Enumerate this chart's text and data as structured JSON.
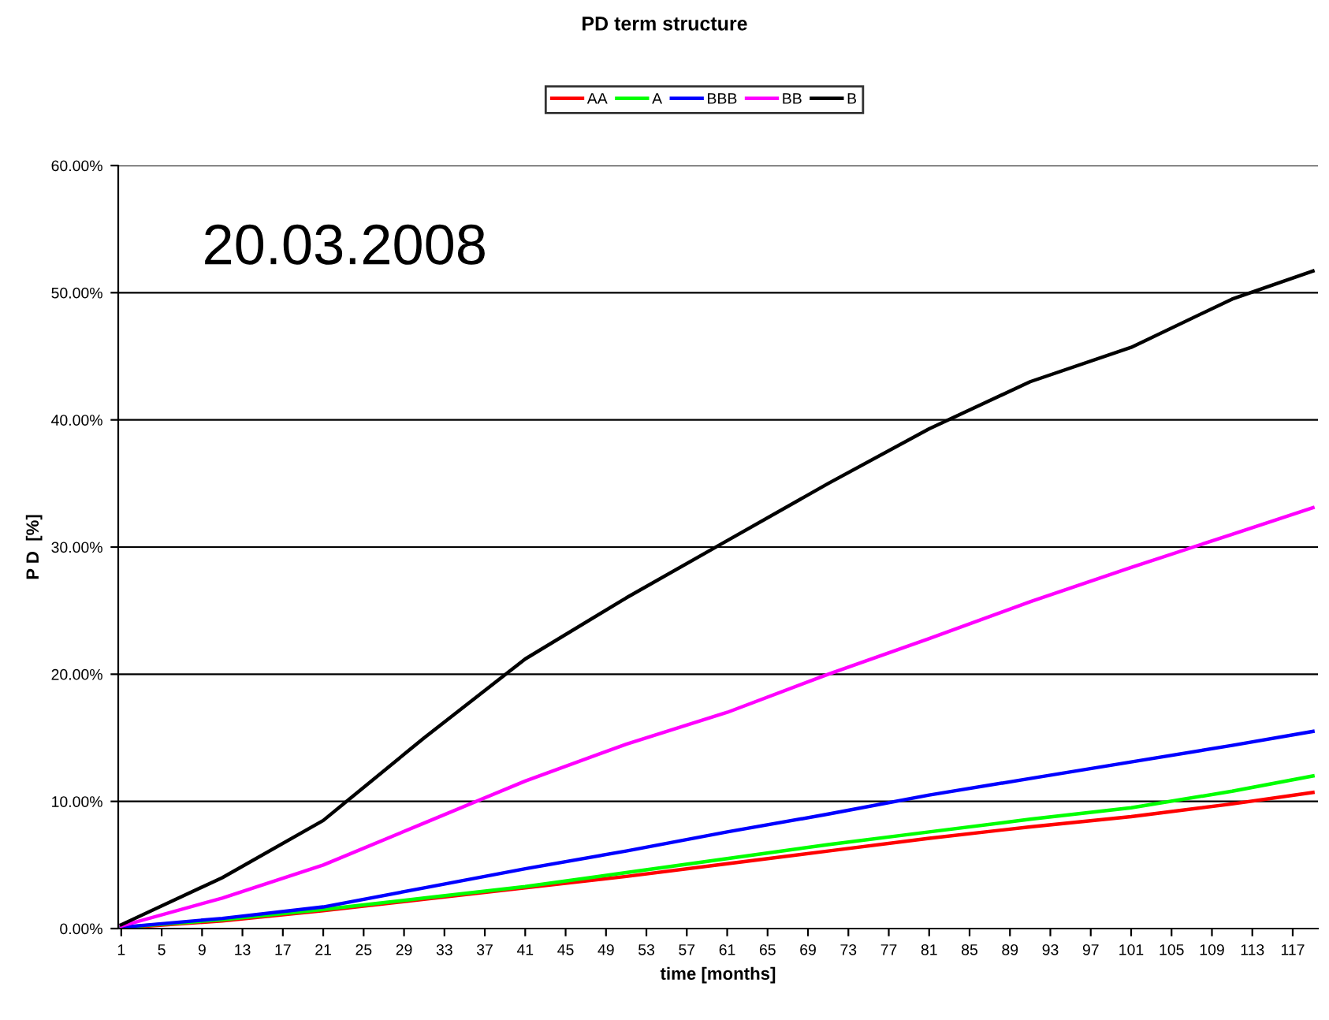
{
  "chart_data": {
    "type": "line",
    "title": "PD term structure",
    "xlabel": "time [months]",
    "ylabel": "P D  [%]",
    "x": [
      1,
      11,
      21,
      31,
      41,
      51,
      61,
      71,
      81,
      91,
      101,
      111,
      119
    ],
    "series": [
      {
        "name": "AA",
        "color": "#ff0000",
        "values": [
          0.05,
          0.6,
          1.4,
          2.3,
          3.2,
          4.1,
          5.1,
          6.1,
          7.1,
          8.0,
          8.8,
          9.8,
          10.7
        ]
      },
      {
        "name": "A",
        "color": "#00ff00",
        "values": [
          0.1,
          0.7,
          1.5,
          2.4,
          3.3,
          4.4,
          5.5,
          6.6,
          7.6,
          8.6,
          9.5,
          10.8,
          12.0
        ]
      },
      {
        "name": "BBB",
        "color": "#0000ff",
        "values": [
          0.1,
          0.8,
          1.7,
          3.2,
          4.7,
          6.1,
          7.6,
          9.0,
          10.5,
          11.8,
          13.1,
          14.4,
          15.5
        ]
      },
      {
        "name": "BB",
        "color": "#ff00ff",
        "values": [
          0.2,
          2.4,
          5.0,
          8.3,
          11.6,
          14.5,
          17.0,
          20.0,
          22.8,
          25.7,
          28.4,
          31.0,
          33.1
        ]
      },
      {
        "name": "B",
        "color": "#000000",
        "values": [
          0.3,
          4.0,
          8.5,
          15.0,
          21.2,
          26.0,
          30.5,
          35.0,
          39.3,
          43.0,
          45.7,
          49.5,
          51.7
        ]
      }
    ],
    "xlim": [
      0.7,
      119.5
    ],
    "xticks": [
      1,
      5,
      9,
      13,
      17,
      21,
      25,
      29,
      33,
      37,
      41,
      45,
      49,
      53,
      57,
      61,
      65,
      69,
      73,
      77,
      81,
      85,
      89,
      93,
      97,
      101,
      105,
      109,
      113,
      117
    ],
    "ylim": [
      0,
      60
    ],
    "yticks": [
      {
        "value": 0,
        "label": "0.00%"
      },
      {
        "value": 10,
        "label": "10.00%"
      },
      {
        "value": 20,
        "label": "20.00%"
      },
      {
        "value": 30,
        "label": "30.00%"
      },
      {
        "value": 40,
        "label": "40.00%"
      },
      {
        "value": 50,
        "label": "50.00%"
      },
      {
        "value": 60,
        "label": "60.00%"
      }
    ],
    "grid": "y",
    "legend": "top",
    "marker": "none",
    "line_style": "solid",
    "annotations": [
      "20.03.2008"
    ]
  }
}
